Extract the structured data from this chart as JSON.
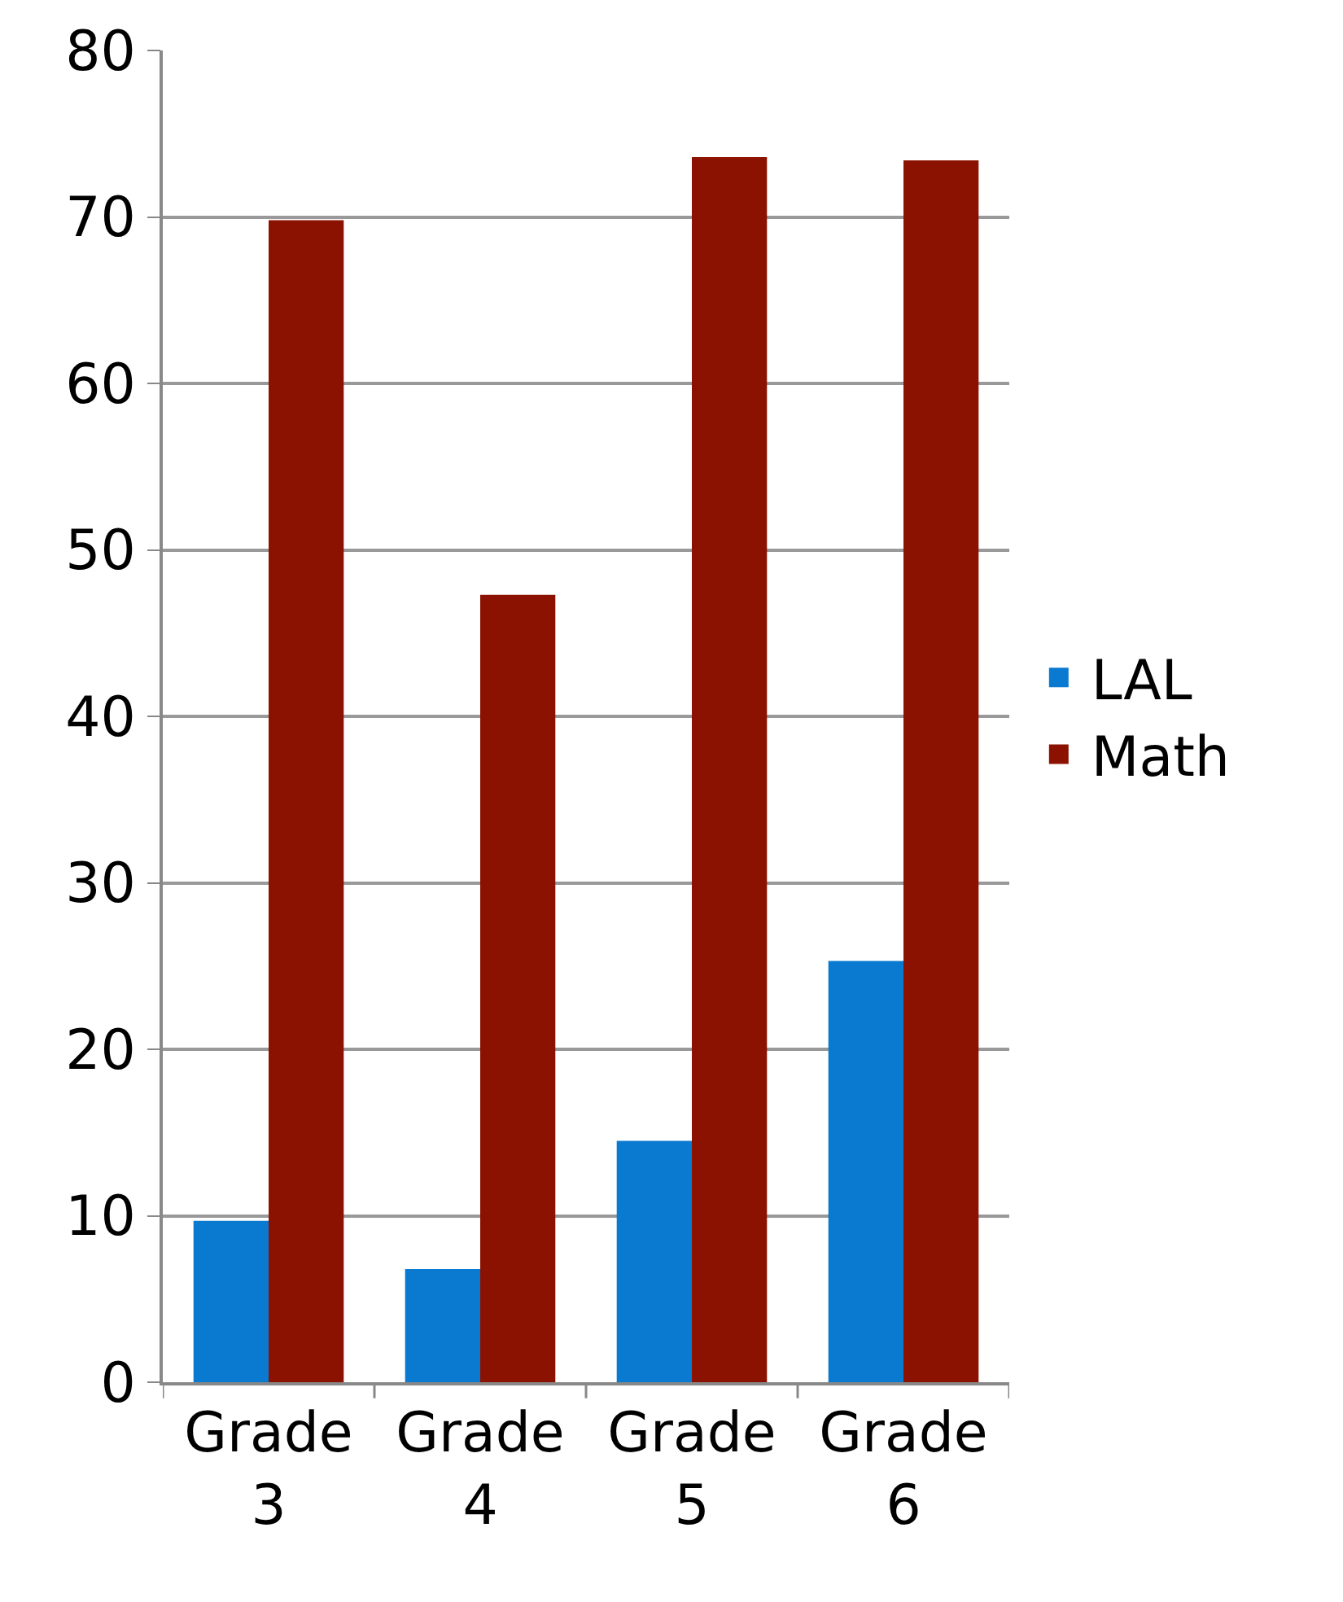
{
  "chart_data": {
    "type": "bar",
    "categories": [
      "Grade 3",
      "Grade 4",
      "Grade 5",
      "Grade 6"
    ],
    "series": [
      {
        "name": "LAL",
        "color": "#0a7ad0",
        "values": [
          9.7,
          6.8,
          14.5,
          25.3
        ]
      },
      {
        "name": "Math",
        "color": "#8b1200",
        "values": [
          69.8,
          47.3,
          73.6,
          73.4
        ]
      }
    ],
    "ylim": [
      0,
      80
    ],
    "yticks": [
      0,
      10,
      20,
      30,
      40,
      50,
      60,
      70,
      80
    ],
    "grid": "y",
    "legend": "right"
  }
}
